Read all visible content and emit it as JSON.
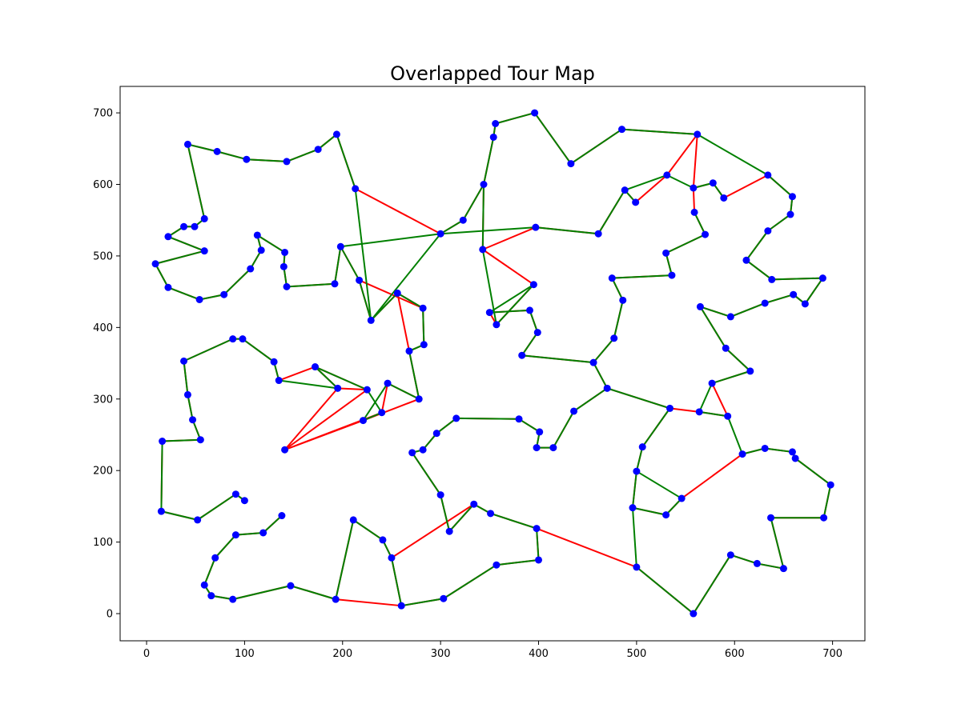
{
  "chart_data": {
    "type": "scatter",
    "title": "Overlapped Tour Map",
    "xlabel": "",
    "ylabel": "",
    "xlim": [
      -27,
      733
    ],
    "ylim": [
      -38,
      737
    ],
    "xticks": [
      0,
      100,
      200,
      300,
      400,
      500,
      600,
      700
    ],
    "yticks": [
      0,
      100,
      200,
      300,
      400,
      500,
      600,
      700
    ],
    "grid": false,
    "colors": {
      "point": "#0000ff",
      "tour_a": "#ff0000",
      "tour_b": "#008000"
    },
    "points": [
      [
        396,
        700
      ],
      [
        356,
        685
      ],
      [
        354,
        666
      ],
      [
        344,
        600
      ],
      [
        323,
        550
      ],
      [
        300,
        531
      ],
      [
        343,
        509
      ],
      [
        397,
        540
      ],
      [
        461,
        531
      ],
      [
        488,
        592
      ],
      [
        499,
        575
      ],
      [
        531,
        613
      ],
      [
        562,
        670
      ],
      [
        485,
        677
      ],
      [
        433,
        629
      ],
      [
        558,
        595
      ],
      [
        578,
        602
      ],
      [
        589,
        581
      ],
      [
        559,
        561
      ],
      [
        570,
        530
      ],
      [
        530,
        504
      ],
      [
        536,
        473
      ],
      [
        475,
        469
      ],
      [
        486,
        438
      ],
      [
        477,
        385
      ],
      [
        634,
        613
      ],
      [
        659,
        583
      ],
      [
        657,
        558
      ],
      [
        634,
        535
      ],
      [
        612,
        494
      ],
      [
        638,
        467
      ],
      [
        690,
        469
      ],
      [
        672,
        433
      ],
      [
        660,
        446
      ],
      [
        631,
        434
      ],
      [
        596,
        415
      ],
      [
        565,
        429
      ],
      [
        591,
        371
      ],
      [
        616,
        339
      ],
      [
        577,
        322
      ],
      [
        564,
        282
      ],
      [
        593,
        276
      ],
      [
        534,
        287
      ],
      [
        506,
        233
      ],
      [
        500,
        199
      ],
      [
        496,
        148
      ],
      [
        530,
        138
      ],
      [
        546,
        161
      ],
      [
        608,
        223
      ],
      [
        631,
        231
      ],
      [
        659,
        226
      ],
      [
        662,
        217
      ],
      [
        698,
        180
      ],
      [
        691,
        134
      ],
      [
        637,
        134
      ],
      [
        650,
        63
      ],
      [
        623,
        70
      ],
      [
        596,
        82
      ],
      [
        558,
        0
      ],
      [
        500,
        65
      ],
      [
        398,
        119
      ],
      [
        400,
        75
      ],
      [
        357,
        68
      ],
      [
        303,
        21
      ],
      [
        260,
        11
      ],
      [
        193,
        20
      ],
      [
        211,
        131
      ],
      [
        241,
        103
      ],
      [
        250,
        78
      ],
      [
        138,
        137
      ],
      [
        119,
        113
      ],
      [
        91,
        110
      ],
      [
        70,
        78
      ],
      [
        59,
        40
      ],
      [
        66,
        25
      ],
      [
        88,
        20
      ],
      [
        147,
        39
      ],
      [
        415,
        232
      ],
      [
        398,
        232
      ],
      [
        401,
        254
      ],
      [
        380,
        272
      ],
      [
        316,
        273
      ],
      [
        296,
        252
      ],
      [
        282,
        229
      ],
      [
        271,
        225
      ],
      [
        300,
        166
      ],
      [
        309,
        115
      ],
      [
        334,
        153
      ],
      [
        351,
        140
      ],
      [
        383,
        361
      ],
      [
        399,
        393
      ],
      [
        391,
        424
      ],
      [
        350,
        421
      ],
      [
        357,
        404
      ],
      [
        395,
        460
      ],
      [
        456,
        351
      ],
      [
        470,
        315
      ],
      [
        436,
        283
      ],
      [
        213,
        594
      ],
      [
        194,
        670
      ],
      [
        175,
        649
      ],
      [
        143,
        632
      ],
      [
        102,
        635
      ],
      [
        72,
        646
      ],
      [
        42,
        656
      ],
      [
        59,
        552
      ],
      [
        49,
        541
      ],
      [
        38,
        541
      ],
      [
        22,
        527
      ],
      [
        59,
        507
      ],
      [
        9,
        489
      ],
      [
        22,
        456
      ],
      [
        54,
        439
      ],
      [
        79,
        446
      ],
      [
        106,
        482
      ],
      [
        117,
        508
      ],
      [
        113,
        529
      ],
      [
        141,
        505
      ],
      [
        140,
        485
      ],
      [
        143,
        457
      ],
      [
        192,
        461
      ],
      [
        198,
        513
      ],
      [
        217,
        466
      ],
      [
        229,
        410
      ],
      [
        256,
        448
      ],
      [
        282,
        427
      ],
      [
        283,
        376
      ],
      [
        268,
        367
      ],
      [
        278,
        300
      ],
      [
        246,
        322
      ],
      [
        240,
        281
      ],
      [
        221,
        270
      ],
      [
        141,
        229
      ],
      [
        195,
        315
      ],
      [
        225,
        313
      ],
      [
        172,
        345
      ],
      [
        135,
        326
      ],
      [
        130,
        352
      ],
      [
        98,
        384
      ],
      [
        88,
        384
      ],
      [
        38,
        353
      ],
      [
        42,
        306
      ],
      [
        47,
        271
      ],
      [
        55,
        243
      ],
      [
        16,
        241
      ],
      [
        15,
        143
      ],
      [
        52,
        131
      ],
      [
        91,
        167
      ],
      [
        100,
        158
      ]
    ],
    "series": [
      {
        "name": "",
        "color": "#ff0000",
        "path": [
          0,
          1,
          2,
          3,
          4,
          5,
          98,
          122,
          124,
          125,
          126,
          127,
          128,
          129,
          130,
          131,
          132,
          133,
          134,
          135,
          136,
          137,
          138,
          139,
          140,
          141,
          142,
          143,
          144,
          145,
          146,
          147,
          148,
          149,
          150,
          151,
          152,
          153,
          69,
          70,
          71,
          72,
          73,
          74,
          75,
          76,
          65,
          64,
          68,
          67,
          66,
          86,
          87,
          88,
          85,
          84,
          83,
          82,
          81,
          80,
          79,
          78,
          77,
          97,
          96,
          95,
          94,
          89,
          90,
          91,
          92,
          93,
          6,
          7,
          8,
          9,
          10,
          11,
          12,
          13,
          14
        ]
      },
      {
        "name": "",
        "color": "#008000",
        "path": [
          0,
          1,
          2,
          3,
          6,
          7,
          8,
          9,
          10,
          11,
          15,
          16,
          17,
          18,
          19,
          20,
          21,
          22,
          23,
          24,
          96,
          95,
          94,
          89,
          90,
          91,
          92,
          93,
          96
        ]
      }
    ],
    "edges_a": [
      [
        396,
        700
      ],
      [
        356,
        685
      ],
      [
        354,
        666
      ],
      [
        344,
        600
      ],
      [
        323,
        550
      ],
      [
        300,
        531
      ],
      [
        213,
        594
      ],
      [
        194,
        670
      ],
      [
        175,
        649
      ],
      [
        143,
        632
      ],
      [
        102,
        635
      ],
      [
        72,
        646
      ],
      [
        42,
        656
      ],
      [
        59,
        552
      ],
      [
        49,
        541
      ],
      [
        38,
        541
      ],
      [
        22,
        527
      ],
      [
        59,
        507
      ],
      [
        9,
        489
      ],
      [
        22,
        456
      ],
      [
        54,
        439
      ],
      [
        79,
        446
      ],
      [
        106,
        482
      ],
      [
        117,
        508
      ],
      [
        113,
        529
      ],
      [
        141,
        505
      ],
      [
        140,
        485
      ],
      [
        143,
        457
      ],
      [
        192,
        461
      ],
      [
        198,
        513
      ],
      [
        217,
        466
      ],
      [
        229,
        410
      ],
      [
        256,
        448
      ],
      [
        282,
        427
      ],
      [
        283,
        376
      ],
      [
        268,
        367
      ],
      [
        246,
        322
      ],
      [
        225,
        313
      ],
      [
        195,
        315
      ],
      [
        172,
        345
      ],
      [
        135,
        326
      ],
      [
        130,
        352
      ],
      [
        98,
        384
      ],
      [
        88,
        384
      ],
      [
        38,
        353
      ],
      [
        42,
        306
      ],
      [
        47,
        271
      ],
      [
        55,
        243
      ],
      [
        16,
        241
      ],
      [
        15,
        143
      ],
      [
        52,
        131
      ],
      [
        100,
        158
      ],
      [
        141,
        229
      ],
      [
        195,
        315
      ]
    ]
  }
}
